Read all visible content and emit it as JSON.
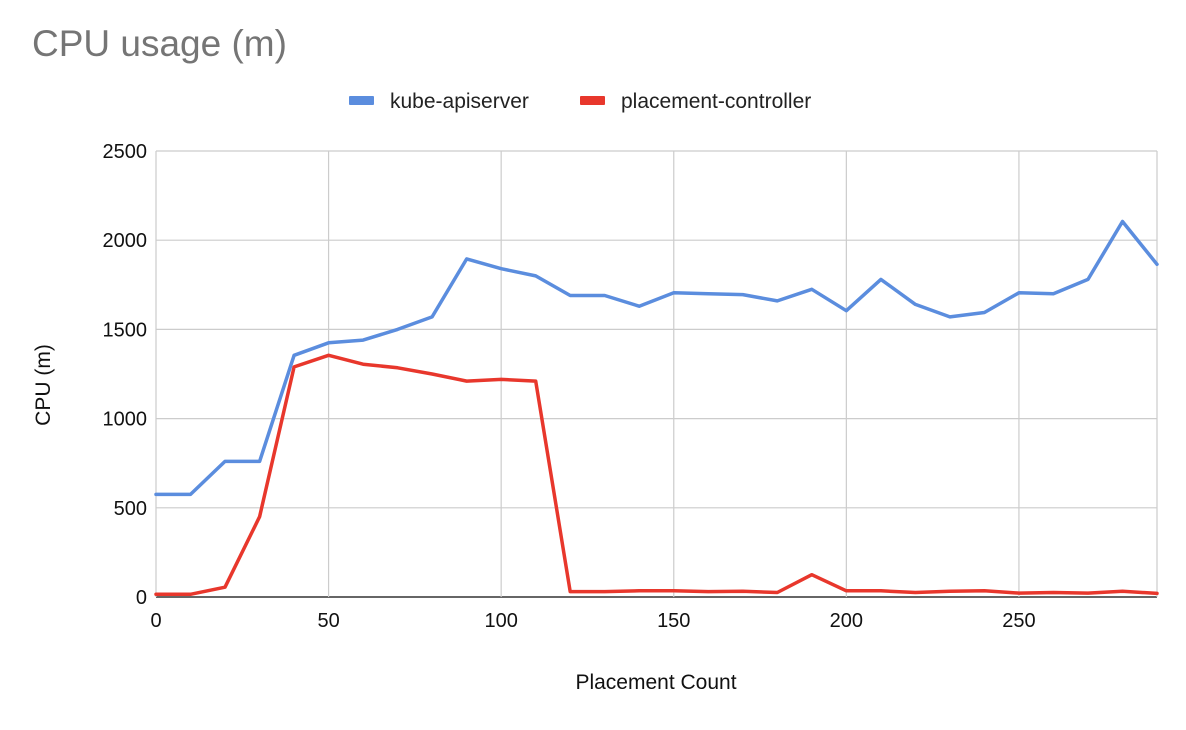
{
  "chart_data": {
    "type": "line",
    "title": "CPU usage (m)",
    "xlabel": "Placement Count",
    "ylabel": "CPU (m)",
    "xlim": [
      0,
      290
    ],
    "ylim": [
      0,
      2500
    ],
    "x_ticks": [
      0,
      50,
      100,
      150,
      200,
      250
    ],
    "x_gridlines": [
      0,
      50,
      100,
      150,
      200,
      250
    ],
    "y_ticks": [
      0,
      500,
      1000,
      1500,
      2000,
      2500
    ],
    "grid": true,
    "legend_position": "top-center",
    "x": [
      0,
      10,
      20,
      30,
      40,
      50,
      60,
      70,
      80,
      90,
      100,
      110,
      120,
      130,
      140,
      150,
      160,
      170,
      180,
      190,
      200,
      210,
      220,
      230,
      240,
      250,
      260,
      270,
      280,
      290
    ],
    "series": [
      {
        "name": "kube-apiserver",
        "color": "#5b8dde",
        "values": [
          575,
          575,
          760,
          760,
          1355,
          1425,
          1440,
          1500,
          1570,
          1895,
          1840,
          1800,
          1690,
          1690,
          1630,
          1705,
          1700,
          1695,
          1660,
          1725,
          1605,
          1780,
          1640,
          1570,
          1595,
          1705,
          1700,
          1780,
          2105,
          1865
        ]
      },
      {
        "name": "placement-controller",
        "color": "#e8372c",
        "values": [
          15,
          15,
          55,
          450,
          1290,
          1355,
          1305,
          1285,
          1250,
          1210,
          1220,
          1210,
          30,
          30,
          35,
          35,
          30,
          32,
          25,
          125,
          35,
          35,
          25,
          32,
          35,
          22,
          25,
          22,
          32,
          20
        ]
      }
    ]
  }
}
